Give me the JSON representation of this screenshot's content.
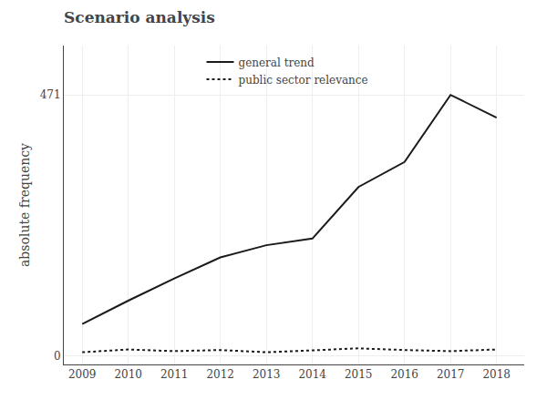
{
  "chart_data": {
    "type": "line",
    "title": "Scenario analysis",
    "ylabel": "absolute frequency",
    "x": [
      2009,
      2010,
      2011,
      2012,
      2013,
      2014,
      2015,
      2016,
      2017,
      2018
    ],
    "series": [
      {
        "name": "general trend",
        "color": "#1a1a1a",
        "line_style": "solid",
        "values": [
          58,
          100,
          140,
          178,
          200,
          212,
          305,
          350,
          471,
          430
        ]
      },
      {
        "name": "public sector relevance",
        "color": "#1a1a1a",
        "line_style": "dotted",
        "values": [
          7,
          12,
          9,
          11,
          7,
          11,
          14,
          11,
          9,
          12
        ]
      }
    ],
    "xlim": [
      2008.6,
      2018.6
    ],
    "xticks": [
      2009,
      2010,
      2011,
      2012,
      2013,
      2014,
      2015,
      2016,
      2017,
      2018
    ],
    "ylim": [
      -15,
      560
    ],
    "yticks": [
      0,
      471
    ],
    "grid": true,
    "legend": "upper left"
  }
}
